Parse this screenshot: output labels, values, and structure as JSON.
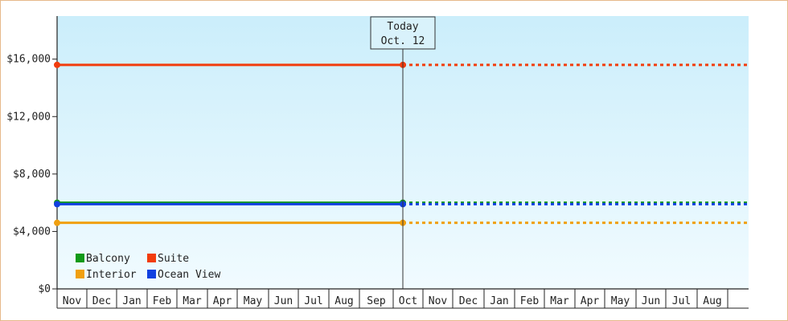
{
  "chart_data": {
    "type": "line",
    "title": "",
    "xlabel": "",
    "ylabel": "",
    "ylim": [
      0,
      19000
    ],
    "yticks": [
      0,
      4000,
      8000,
      12000,
      16000
    ],
    "ytick_labels": [
      "$0",
      "$4,000",
      "$8,000",
      "$12,000",
      "$16,000"
    ],
    "months": [
      "Nov",
      "Dec",
      "Jan",
      "Feb",
      "Mar",
      "Apr",
      "May",
      "Jun",
      "Jul",
      "Aug",
      "Sep",
      "Oct",
      "Nov",
      "Dec",
      "Jan",
      "Feb",
      "Mar",
      "Apr",
      "May",
      "Jun",
      "Jul",
      "Aug"
    ],
    "today": {
      "line1": "Today",
      "line2": "Oct. 12",
      "month_index": 11
    },
    "series": [
      {
        "name": "Suite",
        "color": "#f23c0c",
        "value": 15600,
        "dash": "4,4"
      },
      {
        "name": "Balcony",
        "color": "#119a18",
        "value": 6000,
        "dash": "4,4"
      },
      {
        "name": "Ocean View",
        "color": "#1040e0",
        "value": 5900,
        "dash": "4,4"
      },
      {
        "name": "Interior",
        "color": "#f0a010",
        "value": 4600,
        "dash": "4,4"
      }
    ],
    "legend": {
      "placement": "bottom-left",
      "entries": [
        {
          "name": "Balcony",
          "color": "#119a18"
        },
        {
          "name": "Suite",
          "color": "#f23c0c"
        },
        {
          "name": "Interior",
          "color": "#f0a010"
        },
        {
          "name": "Ocean View",
          "color": "#1040e0"
        }
      ]
    },
    "grid": false
  }
}
